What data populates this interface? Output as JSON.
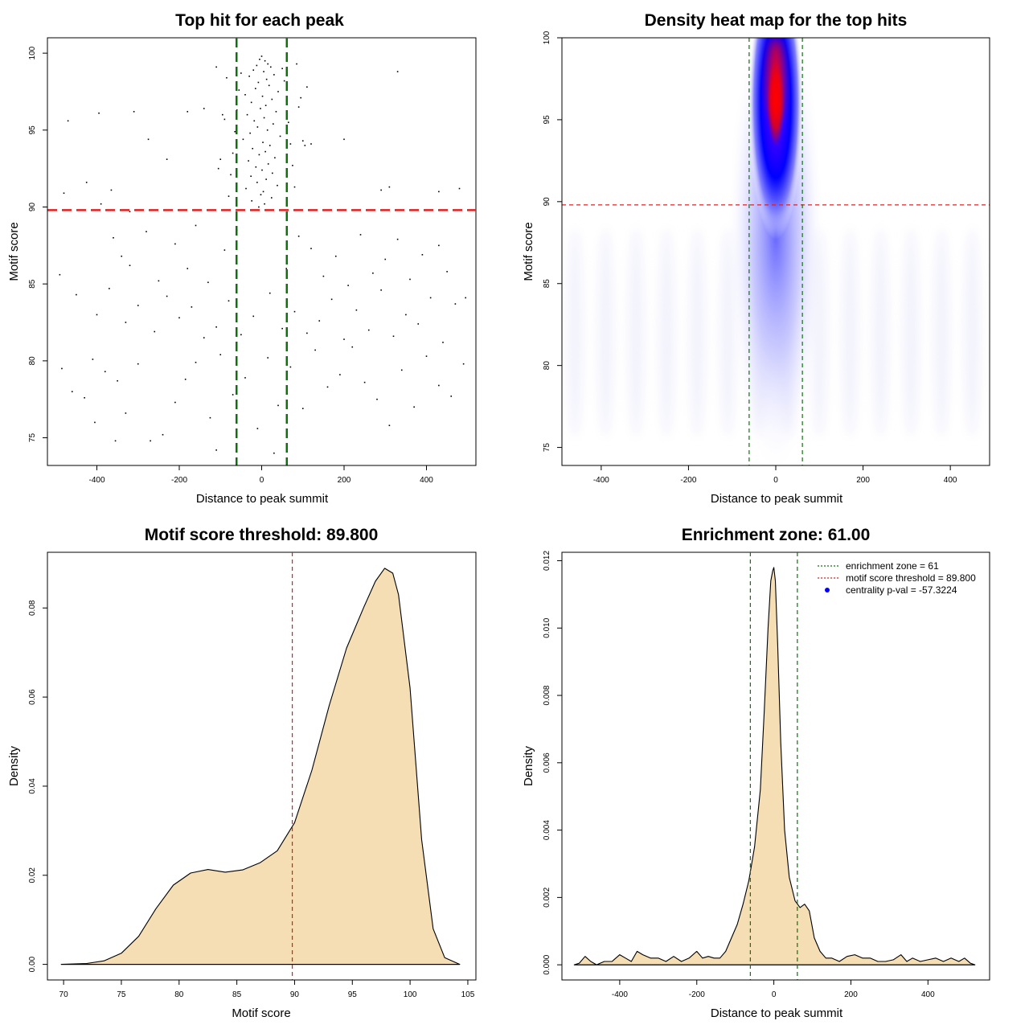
{
  "chart_data": [
    {
      "id": "scatter",
      "type": "scatter",
      "title": "Top hit for each peak",
      "xlabel": "Distance to peak summit",
      "ylabel": "Motif score",
      "xlim": [
        -520,
        520
      ],
      "ylim": [
        73.2,
        101.0
      ],
      "xticks": [
        "-400",
        "-200",
        "0",
        "200",
        "400"
      ],
      "xtick_values": [
        -400,
        -200,
        0,
        200,
        400
      ],
      "yticks": [
        "75",
        "80",
        "85",
        "90",
        "95",
        "100"
      ],
      "ytick_values": [
        75,
        80,
        85,
        90,
        95,
        100
      ],
      "hlines": [
        {
          "y": 89.8,
          "color": "#e02020",
          "style": "dashed"
        }
      ],
      "vlines": [
        {
          "x": -61,
          "color": "#107010",
          "style": "dashed"
        },
        {
          "x": 61,
          "color": "#107010",
          "style": "dashed"
        }
      ],
      "points": [
        [
          0,
          99.8
        ],
        [
          -5,
          99.6
        ],
        [
          8,
          99.5
        ],
        [
          15,
          99.3
        ],
        [
          -12,
          99.2
        ],
        [
          22,
          99.1
        ],
        [
          -20,
          98.9
        ],
        [
          5,
          98.8
        ],
        [
          30,
          98.6
        ],
        [
          -30,
          98.5
        ],
        [
          12,
          98.3
        ],
        [
          -8,
          98.1
        ],
        [
          18,
          97.9
        ],
        [
          -15,
          97.7
        ],
        [
          40,
          97.5
        ],
        [
          -40,
          97.3
        ],
        [
          2,
          97.2
        ],
        [
          25,
          97.0
        ],
        [
          -25,
          96.8
        ],
        [
          10,
          96.6
        ],
        [
          -3,
          96.4
        ],
        [
          35,
          96.2
        ],
        [
          -35,
          96.0
        ],
        [
          6,
          95.8
        ],
        [
          -18,
          95.6
        ],
        [
          28,
          95.4
        ],
        [
          -10,
          95.2
        ],
        [
          14,
          95.0
        ],
        [
          -28,
          94.8
        ],
        [
          45,
          94.6
        ],
        [
          -45,
          94.4
        ],
        [
          3,
          94.2
        ],
        [
          20,
          94.0
        ],
        [
          -22,
          93.8
        ],
        [
          9,
          93.6
        ],
        [
          -6,
          93.4
        ],
        [
          32,
          93.2
        ],
        [
          -32,
          93.0
        ],
        [
          16,
          92.8
        ],
        [
          -14,
          92.6
        ],
        [
          1,
          92.4
        ],
        [
          26,
          92.2
        ],
        [
          -26,
          92.0
        ],
        [
          11,
          91.8
        ],
        [
          -11,
          91.6
        ],
        [
          38,
          91.4
        ],
        [
          -38,
          91.2
        ],
        [
          4,
          91.0
        ],
        [
          -2,
          90.8
        ],
        [
          24,
          90.6
        ],
        [
          -24,
          90.4
        ],
        [
          7,
          90.2
        ],
        [
          -7,
          90.0
        ],
        [
          50,
          99.0
        ],
        [
          -50,
          98.7
        ],
        [
          55,
          98.2
        ],
        [
          -55,
          97.6
        ],
        [
          60,
          96.9
        ],
        [
          -60,
          96.3
        ],
        [
          65,
          95.5
        ],
        [
          -65,
          94.9
        ],
        [
          70,
          94.1
        ],
        [
          -70,
          93.5
        ],
        [
          75,
          92.7
        ],
        [
          -75,
          92.1
        ],
        [
          80,
          91.3
        ],
        [
          -80,
          90.7
        ],
        [
          90,
          96.5
        ],
        [
          -90,
          95.7
        ],
        [
          100,
          94.3
        ],
        [
          -100,
          93.1
        ],
        [
          110,
          97.8
        ],
        [
          -110,
          99.1
        ],
        [
          85,
          99.3
        ],
        [
          -85,
          98.4
        ],
        [
          95,
          97.1
        ],
        [
          -95,
          96.0
        ],
        [
          105,
          94.0
        ],
        [
          -105,
          92.5
        ],
        [
          -470,
          95.6
        ],
        [
          -395,
          96.1
        ],
        [
          -310,
          96.2
        ],
        [
          -275,
          94.4
        ],
        [
          -230,
          93.1
        ],
        [
          -180,
          96.2
        ],
        [
          -140,
          96.4
        ],
        [
          330,
          98.8
        ],
        [
          200,
          94.4
        ],
        [
          120,
          94.1
        ],
        [
          -425,
          91.6
        ],
        [
          -365,
          91.1
        ],
        [
          -480,
          90.9
        ],
        [
          -390,
          90.2
        ],
        [
          -320,
          89.7
        ],
        [
          290,
          91.1
        ],
        [
          310,
          91.3
        ],
        [
          430,
          91.0
        ],
        [
          480,
          91.2
        ],
        [
          -360,
          88.0
        ],
        [
          -340,
          86.8
        ],
        [
          -320,
          86.2
        ],
        [
          -280,
          88.4
        ],
        [
          -250,
          85.2
        ],
        [
          -210,
          87.6
        ],
        [
          -180,
          86.0
        ],
        [
          -160,
          88.8
        ],
        [
          -130,
          85.1
        ],
        [
          -90,
          87.2
        ],
        [
          -60,
          88.5
        ],
        [
          60,
          86.0
        ],
        [
          90,
          88.1
        ],
        [
          120,
          87.3
        ],
        [
          150,
          85.5
        ],
        [
          180,
          86.8
        ],
        [
          210,
          84.9
        ],
        [
          240,
          88.2
        ],
        [
          270,
          85.7
        ],
        [
          300,
          86.6
        ],
        [
          330,
          87.9
        ],
        [
          360,
          85.3
        ],
        [
          390,
          86.9
        ],
        [
          430,
          87.5
        ],
        [
          450,
          85.8
        ],
        [
          -490,
          85.6
        ],
        [
          -450,
          84.3
        ],
        [
          -400,
          83.0
        ],
        [
          -370,
          84.7
        ],
        [
          -330,
          82.5
        ],
        [
          -300,
          83.6
        ],
        [
          -260,
          81.9
        ],
        [
          -230,
          84.2
        ],
        [
          -200,
          82.8
        ],
        [
          -170,
          83.5
        ],
        [
          -140,
          81.5
        ],
        [
          -110,
          82.2
        ],
        [
          -80,
          83.9
        ],
        [
          -50,
          81.7
        ],
        [
          -20,
          82.9
        ],
        [
          20,
          84.4
        ],
        [
          50,
          82.1
        ],
        [
          80,
          83.2
        ],
        [
          110,
          81.8
        ],
        [
          140,
          82.6
        ],
        [
          170,
          84.0
        ],
        [
          200,
          81.4
        ],
        [
          230,
          83.3
        ],
        [
          260,
          82.0
        ],
        [
          290,
          84.6
        ],
        [
          320,
          81.6
        ],
        [
          350,
          83.0
        ],
        [
          380,
          82.4
        ],
        [
          410,
          84.1
        ],
        [
          440,
          81.2
        ],
        [
          470,
          83.7
        ],
        [
          495,
          84.1
        ],
        [
          -485,
          79.5
        ],
        [
          -460,
          78.0
        ],
        [
          -430,
          77.6
        ],
        [
          -405,
          76.0
        ],
        [
          -380,
          79.3
        ],
        [
          -350,
          78.7
        ],
        [
          -330,
          76.6
        ],
        [
          -300,
          79.8
        ],
        [
          -270,
          74.8
        ],
        [
          -240,
          75.2
        ],
        [
          -210,
          77.3
        ],
        [
          -185,
          78.8
        ],
        [
          -160,
          79.9
        ],
        [
          -125,
          76.3
        ],
        [
          -100,
          80.4
        ],
        [
          -70,
          77.8
        ],
        [
          -40,
          78.9
        ],
        [
          -10,
          75.6
        ],
        [
          15,
          80.2
        ],
        [
          40,
          77.1
        ],
        [
          70,
          79.6
        ],
        [
          100,
          76.9
        ],
        [
          130,
          80.7
        ],
        [
          160,
          78.3
        ],
        [
          190,
          79.1
        ],
        [
          220,
          80.9
        ],
        [
          250,
          78.6
        ],
        [
          280,
          77.5
        ],
        [
          310,
          75.8
        ],
        [
          340,
          79.4
        ],
        [
          370,
          77.0
        ],
        [
          400,
          80.3
        ],
        [
          430,
          78.4
        ],
        [
          460,
          77.7
        ],
        [
          490,
          79.8
        ],
        [
          -110,
          74.2
        ],
        [
          30,
          74.0
        ],
        [
          -355,
          74.8
        ],
        [
          -410,
          80.1
        ]
      ]
    },
    {
      "id": "heatmap",
      "type": "heatmap",
      "title": "Density heat map for the top hits",
      "xlabel": "Distance to peak summit",
      "ylabel": "Motif score",
      "xlim": [
        -490,
        490
      ],
      "ylim": [
        73.9,
        100.0
      ],
      "xticks": [
        "-400",
        "-200",
        "0",
        "200",
        "400"
      ],
      "xtick_values": [
        -400,
        -200,
        0,
        200,
        400
      ],
      "yticks": [
        "75",
        "80",
        "85",
        "90",
        "95",
        "100"
      ],
      "ytick_values": [
        75,
        80,
        85,
        90,
        95,
        100
      ],
      "colors": [
        "#ffffff",
        "#0000ff",
        "#ff0000"
      ],
      "peak": {
        "x": 0,
        "y": 97.5
      },
      "hlines": [
        {
          "y": 89.8,
          "color": "#e02020",
          "style": "dashed"
        }
      ],
      "vlines": [
        {
          "x": -61,
          "color": "#107010",
          "style": "dashed"
        },
        {
          "x": 61,
          "color": "#107010",
          "style": "dashed"
        }
      ]
    },
    {
      "id": "score_density",
      "type": "area",
      "title": "Motif score threshold: 89.800",
      "xlabel": "Motif score",
      "ylabel": "Density",
      "xlim": [
        68.6,
        105.7
      ],
      "ylim": [
        -0.0035,
        0.0925
      ],
      "xticks": [
        "70",
        "75",
        "80",
        "85",
        "90",
        "95",
        "100",
        "105"
      ],
      "xtick_values": [
        70,
        75,
        80,
        85,
        90,
        95,
        100,
        105
      ],
      "yticks": [
        "0.00",
        "0.02",
        "0.04",
        "0.06",
        "0.08"
      ],
      "ytick_values": [
        0.0,
        0.02,
        0.04,
        0.06,
        0.08
      ],
      "fill": "#f5deb3",
      "vlines": [
        {
          "x": 89.8,
          "color": "#d02020",
          "style": "dashed"
        }
      ],
      "x": [
        69.8,
        72,
        73.5,
        75,
        76.5,
        78,
        79.5,
        81,
        82.5,
        84,
        85.5,
        87,
        88.5,
        90,
        91.5,
        93,
        94.5,
        96,
        97,
        97.8,
        98.5,
        99,
        100,
        101,
        102,
        103,
        104.3
      ],
      "y": [
        0,
        0.0002,
        0.0008,
        0.0025,
        0.0063,
        0.0125,
        0.0178,
        0.0205,
        0.0213,
        0.0207,
        0.0212,
        0.0228,
        0.0255,
        0.0318,
        0.0436,
        0.0581,
        0.071,
        0.0802,
        0.086,
        0.0889,
        0.0878,
        0.083,
        0.062,
        0.028,
        0.008,
        0.0015,
        0
      ]
    },
    {
      "id": "distance_density",
      "type": "area",
      "title": "Enrichment zone: 61.00",
      "xlabel": "Distance to peak summit",
      "ylabel": "Density",
      "xlim": [
        -550,
        560
      ],
      "ylim": [
        -0.00045,
        0.01225
      ],
      "xticks": [
        "-400",
        "-200",
        "0",
        "200",
        "400"
      ],
      "xtick_values": [
        -400,
        -200,
        0,
        200,
        400
      ],
      "yticks": [
        "0.000",
        "0.002",
        "0.004",
        "0.006",
        "0.008",
        "0.010",
        "0.012"
      ],
      "ytick_values": [
        0,
        0.002,
        0.004,
        0.006,
        0.008,
        0.01,
        0.012
      ],
      "fill": "#f5deb3",
      "vlines": [
        {
          "x": -61,
          "color": "#107010",
          "style": "dashed"
        },
        {
          "x": 61,
          "color": "#107010",
          "style": "dashed"
        }
      ],
      "x": [
        -518,
        -505,
        -490,
        -475,
        -460,
        -440,
        -420,
        -400,
        -385,
        -370,
        -355,
        -340,
        -320,
        -300,
        -280,
        -260,
        -240,
        -220,
        -200,
        -185,
        -170,
        -155,
        -140,
        -125,
        -110,
        -95,
        -80,
        -65,
        -50,
        -35,
        -25,
        -15,
        -8,
        -3,
        0,
        4,
        10,
        18,
        28,
        40,
        55,
        68,
        80,
        92,
        105,
        120,
        135,
        150,
        170,
        190,
        210,
        230,
        250,
        270,
        290,
        310,
        330,
        345,
        360,
        380,
        400,
        420,
        440,
        460,
        480,
        495,
        510,
        522
      ],
      "y": [
        0,
        5e-05,
        0.00025,
        0.0001,
        0,
        0.0001,
        0.0001,
        0.0003,
        0.0002,
        0.0001,
        0.0004,
        0.0003,
        0.0002,
        0.0002,
        0.0001,
        0.00025,
        0.0001,
        0.0002,
        0.0004,
        0.0002,
        0.00025,
        0.0002,
        0.0002,
        0.0004,
        0.0008,
        0.0012,
        0.0018,
        0.0025,
        0.0035,
        0.0052,
        0.0075,
        0.01,
        0.0114,
        0.0117,
        0.0118,
        0.0114,
        0.0095,
        0.0066,
        0.004,
        0.0026,
        0.0019,
        0.0017,
        0.0018,
        0.0016,
        0.0008,
        0.0004,
        0.0002,
        0.0002,
        0.0001,
        0.00025,
        0.0003,
        0.0002,
        0.0002,
        0.0001,
        0.0001,
        0.00015,
        0.0003,
        0.0001,
        0.0002,
        0.0001,
        0.00015,
        0.0002,
        0.0001,
        0.0002,
        0.0001,
        0.0002,
        5e-05,
        0
      ],
      "legend": {
        "position": "top-right",
        "entries": [
          {
            "label": "enrichment zone = 61",
            "color": "#107010",
            "kind": "dotted-line"
          },
          {
            "label": "motif score threshold = 89.800",
            "color": "#e02020",
            "kind": "dotted-line"
          },
          {
            "label": "centrality p-val = -57.3224",
            "color": "#0000ff",
            "kind": "point"
          }
        ]
      }
    }
  ]
}
